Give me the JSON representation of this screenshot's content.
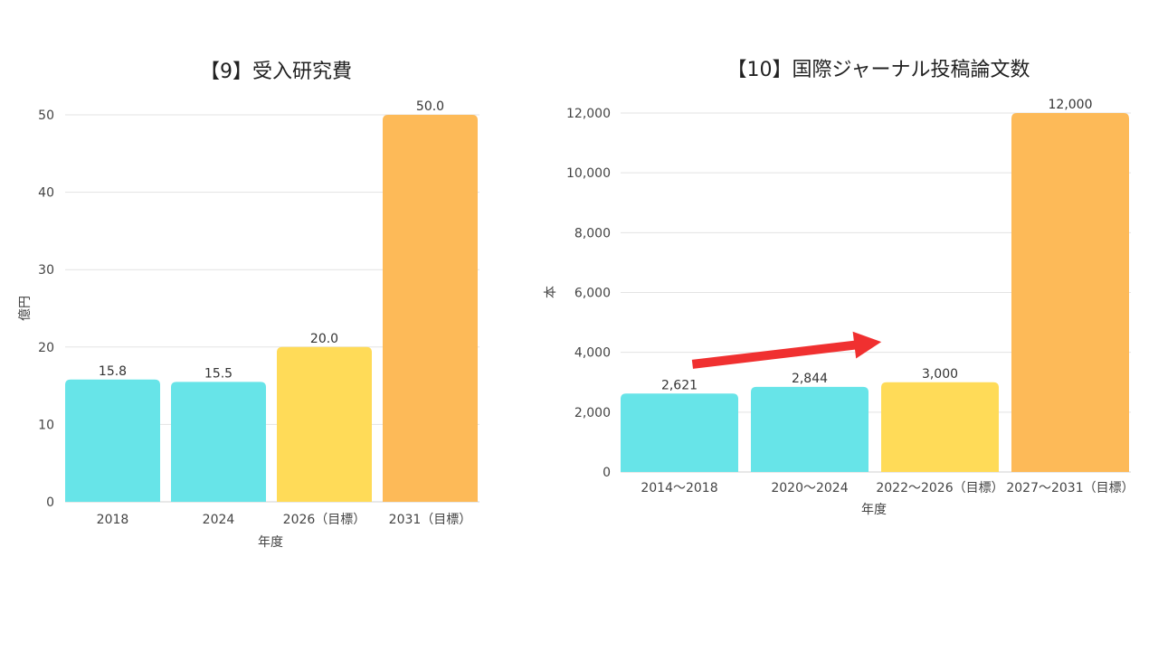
{
  "chart_data": [
    {
      "type": "bar",
      "title": "【9】受入研究費",
      "xlabel": "年度",
      "ylabel": "億円",
      "ylim": [
        0,
        50
      ],
      "yticks": [
        0,
        10,
        20,
        30,
        40,
        50
      ],
      "ytick_labels": [
        "0",
        "10",
        "20",
        "30",
        "40",
        "50"
      ],
      "categories": [
        "2018",
        "2024",
        "2026（目標）",
        "2031（目標）"
      ],
      "values": [
        15.8,
        15.5,
        20.0,
        50.0
      ],
      "value_labels": [
        "15.8",
        "15.5",
        "20.0",
        "50.0"
      ],
      "colors": [
        "#67E4E8",
        "#67E4E8",
        "#FFDB58",
        "#FDBA58"
      ],
      "grid": true
    },
    {
      "type": "bar",
      "title": "【10】国際ジャーナル投稿論文数",
      "xlabel": "年度",
      "ylabel": "本",
      "ylim": [
        0,
        12000
      ],
      "yticks": [
        0,
        2000,
        4000,
        6000,
        8000,
        10000,
        12000
      ],
      "ytick_labels": [
        "0",
        "2,000",
        "4,000",
        "6,000",
        "8,000",
        "10,000",
        "12,000"
      ],
      "categories": [
        "2014～2018",
        "2020～2024",
        "2022～2026（目標）",
        "2027～2031（目標）"
      ],
      "values": [
        2621,
        2844,
        3000,
        12000
      ],
      "value_labels": [
        "2,621",
        "2,844",
        "3,000",
        "12,000"
      ],
      "colors": [
        "#67E4E8",
        "#67E4E8",
        "#FFDB58",
        "#FDBA58"
      ],
      "grid": true,
      "annotation": {
        "type": "arrow",
        "color": "#F03030",
        "from": [
          0.1,
          3600
        ],
        "to": [
          1.55,
          4350
        ]
      }
    }
  ]
}
